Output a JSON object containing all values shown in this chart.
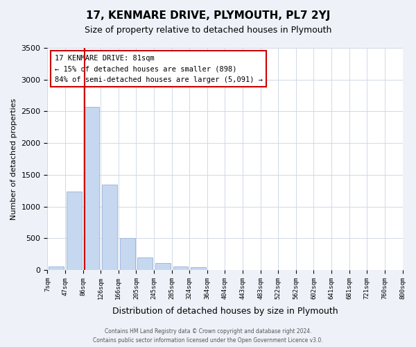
{
  "title": "17, KENMARE DRIVE, PLYMOUTH, PL7 2YJ",
  "subtitle": "Size of property relative to detached houses in Plymouth",
  "xlabel": "Distribution of detached houses by size in Plymouth",
  "ylabel": "Number of detached properties",
  "bin_labels": [
    "7sqm",
    "47sqm",
    "86sqm",
    "126sqm",
    "166sqm",
    "205sqm",
    "245sqm",
    "285sqm",
    "324sqm",
    "364sqm",
    "404sqm",
    "443sqm",
    "483sqm",
    "522sqm",
    "562sqm",
    "602sqm",
    "641sqm",
    "681sqm",
    "721sqm",
    "760sqm",
    "800sqm"
  ],
  "bar_values": [
    50,
    1240,
    2570,
    1340,
    500,
    200,
    110,
    50,
    40,
    0,
    0,
    0,
    0,
    0,
    0,
    0,
    0,
    0,
    0,
    0
  ],
  "bar_color": "#c5d8f0",
  "bar_edge_color": "#a0b8d8",
  "vline_color": "#cc0000",
  "ylim": [
    0,
    3500
  ],
  "yticks": [
    0,
    500,
    1000,
    1500,
    2000,
    2500,
    3000,
    3500
  ],
  "annotation_title": "17 KENMARE DRIVE: 81sqm",
  "annotation_line1": "← 15% of detached houses are smaller (898)",
  "annotation_line2": "84% of semi-detached houses are larger (5,091) →",
  "annotation_box_color": "#ffffff",
  "annotation_box_edge": "#cc0000",
  "footer_line1": "Contains HM Land Registry data © Crown copyright and database right 2024.",
  "footer_line2": "Contains public sector information licensed under the Open Government Licence v3.0.",
  "bg_color": "#eef2f8",
  "plot_bg_color": "#ffffff"
}
